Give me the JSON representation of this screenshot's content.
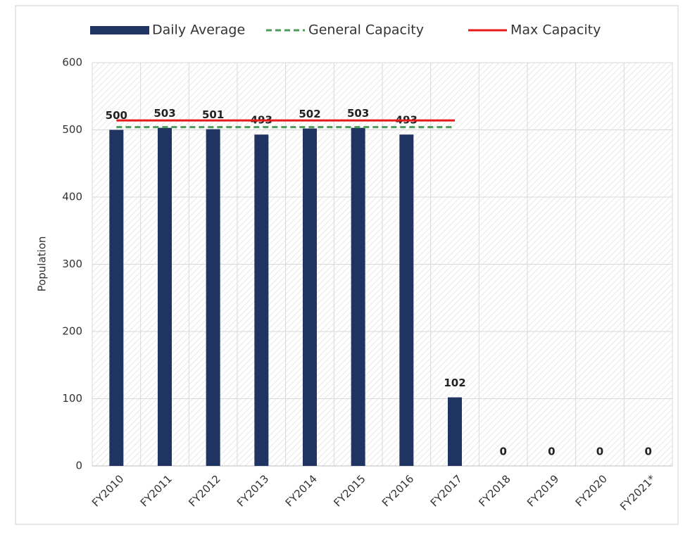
{
  "chart_data": {
    "type": "bar",
    "y_label": "Population",
    "categories": [
      "FY2010",
      "FY2011",
      "FY2012",
      "FY2013",
      "FY2014",
      "FY2015",
      "FY2016",
      "FY2017",
      "FY2018",
      "FY2019",
      "FY2020",
      "FY2021*"
    ],
    "series": [
      {
        "name": "Daily Average",
        "type": "bar",
        "color": "#1f3461",
        "values": [
          500,
          503,
          501,
          493,
          502,
          503,
          493,
          102,
          0,
          0,
          0,
          0
        ]
      },
      {
        "name": "General Capacity",
        "type": "line",
        "dashed": true,
        "color": "#4e9a5a",
        "values": [
          504,
          504,
          504,
          504,
          504,
          504,
          504,
          504,
          null,
          null,
          null,
          null
        ]
      },
      {
        "name": "Max Capacity",
        "type": "line",
        "color": "#e8191d",
        "values": [
          514,
          514,
          514,
          514,
          514,
          514,
          514,
          514,
          null,
          null,
          null,
          null
        ]
      }
    ],
    "ylim": [
      0,
      600
    ],
    "yticks": [
      0,
      100,
      200,
      300,
      400,
      500,
      600
    ],
    "grid": true,
    "legend": "top"
  }
}
